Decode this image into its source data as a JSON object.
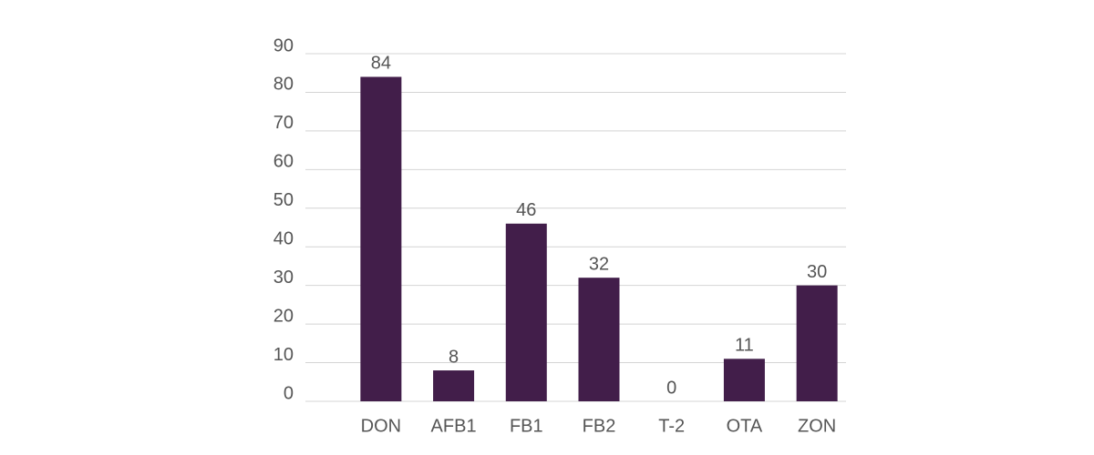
{
  "chart_data": {
    "type": "bar",
    "categories": [
      "DON",
      "AFB1",
      "FB1",
      "FB2",
      "T-2",
      "OTA",
      "ZON"
    ],
    "values": [
      84,
      8,
      46,
      32,
      0,
      11,
      30
    ],
    "color": "#421e4a",
    "ylim": [
      0,
      90
    ],
    "yticks": [
      0,
      10,
      20,
      30,
      40,
      50,
      60,
      70,
      80,
      90
    ],
    "grid": true
  }
}
